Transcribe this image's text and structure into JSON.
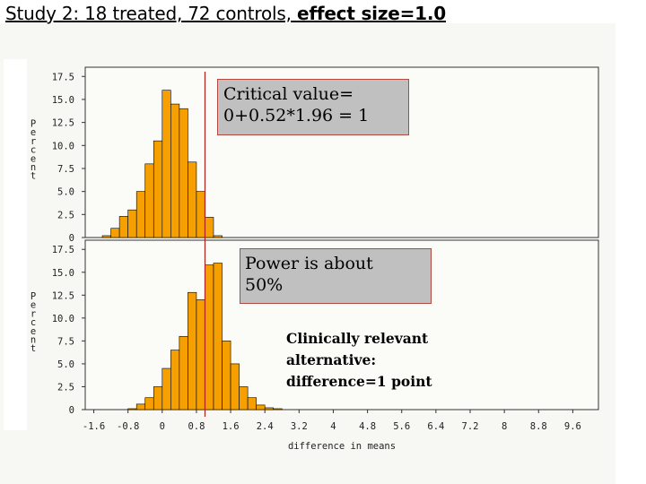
{
  "slide": {
    "title_plain": "Study 2: 18 treated, 72 controls, ",
    "title_bold": "effect size=1.0"
  },
  "callouts": {
    "critical_line1": "Critical value=",
    "critical_line2": "0+0.52*1.96 = 1",
    "power_line1": "Power is about",
    "power_line2": "50%",
    "note_line1": "Clinically relevant",
    "note_line2": "alternative:",
    "note_line3": "difference=1 point"
  },
  "colors": {
    "bar_fill": "#f5a000",
    "bar_stroke": "#000000",
    "critical_line": "#b02020"
  },
  "chart_data": [
    {
      "type": "bar",
      "panel": "top",
      "ylabel": "Percent",
      "ylim": [
        0,
        18.5
      ],
      "y_ticks": [
        "0",
        "2.5",
        "5.0",
        "7.5",
        "10.0",
        "12.5",
        "15.0",
        "17.5"
      ],
      "y_tick_values": [
        0,
        2.5,
        5,
        7.5,
        10,
        12.5,
        15,
        17.5
      ],
      "xlim": [
        -1.8,
        10.2
      ],
      "bin_width": 0.2,
      "bins_x": [
        -1.3,
        -1.1,
        -0.9,
        -0.7,
        -0.5,
        -0.3,
        -0.1,
        0.1,
        0.3,
        0.5,
        0.7,
        0.9,
        1.1,
        1.3
      ],
      "values": [
        0.2,
        1.0,
        2.3,
        3.0,
        5.0,
        8.0,
        10.5,
        16.0,
        14.5,
        14.0,
        8.2,
        5.0,
        2.2,
        0.2
      ],
      "critical_value": 1
    },
    {
      "type": "bar",
      "panel": "bottom",
      "ylabel": "Percent",
      "xlabel": "difference in means",
      "ylim": [
        0,
        18.5
      ],
      "y_ticks": [
        "0",
        "2.5",
        "5.0",
        "7.5",
        "10.0",
        "12.5",
        "15.0",
        "17.5"
      ],
      "y_tick_values": [
        0,
        2.5,
        5,
        7.5,
        10,
        12.5,
        15,
        17.5
      ],
      "xlim": [
        -1.8,
        10.2
      ],
      "x_ticks": [
        "-1.6",
        "-0.8",
        "0",
        "0.8",
        "1.6",
        "2.4",
        "3.2",
        "4",
        "4.8",
        "5.6",
        "6.4",
        "7.2",
        "8",
        "8.8",
        "9.6"
      ],
      "x_tick_values": [
        -1.6,
        -0.8,
        0,
        0.8,
        1.6,
        2.4,
        3.2,
        4,
        4.8,
        5.6,
        6.4,
        7.2,
        8,
        8.8,
        9.6
      ],
      "bin_width": 0.2,
      "bins_x": [
        -0.7,
        -0.5,
        -0.3,
        -0.1,
        0.1,
        0.3,
        0.5,
        0.7,
        0.9,
        1.1,
        1.3,
        1.5,
        1.7,
        1.9,
        2.1,
        2.3,
        2.5,
        2.7
      ],
      "values": [
        0.1,
        0.6,
        1.3,
        2.5,
        4.5,
        6.5,
        8.0,
        12.8,
        12.0,
        15.8,
        16.0,
        7.5,
        5.0,
        2.5,
        1.3,
        0.5,
        0.2,
        0.1
      ],
      "critical_value": 1
    }
  ]
}
